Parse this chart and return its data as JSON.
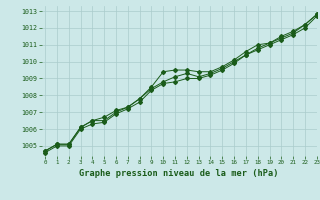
{
  "title": "Graphe pression niveau de la mer (hPa)",
  "bg_color": "#cce8e8",
  "grid_color": "#aacccc",
  "line_color": "#1a5c1a",
  "xlim": [
    -0.3,
    23
  ],
  "ylim": [
    1004.4,
    1013.3
  ],
  "yticks": [
    1005,
    1006,
    1007,
    1008,
    1009,
    1010,
    1011,
    1012,
    1013
  ],
  "xticks": [
    0,
    1,
    2,
    3,
    4,
    5,
    6,
    7,
    8,
    9,
    10,
    11,
    12,
    13,
    14,
    15,
    16,
    17,
    18,
    19,
    20,
    21,
    22,
    23
  ],
  "series1": [
    1004.7,
    1005.1,
    1005.1,
    1006.1,
    1006.5,
    1006.5,
    1007.0,
    1007.3,
    1007.8,
    1008.5,
    1009.4,
    1009.5,
    1009.5,
    1009.4,
    1009.4,
    1009.7,
    1010.1,
    1010.6,
    1011.0,
    1011.1,
    1011.5,
    1011.8,
    1012.2,
    1012.8
  ],
  "series2": [
    1004.7,
    1005.1,
    1005.1,
    1006.1,
    1006.5,
    1006.7,
    1007.1,
    1007.3,
    1007.8,
    1008.4,
    1008.8,
    1009.1,
    1009.3,
    1009.1,
    1009.3,
    1009.6,
    1010.0,
    1010.4,
    1010.8,
    1011.1,
    1011.4,
    1011.7,
    1012.2,
    1012.8
  ],
  "series3": [
    1004.6,
    1005.0,
    1005.0,
    1006.0,
    1006.3,
    1006.4,
    1006.9,
    1007.2,
    1007.6,
    1008.3,
    1008.7,
    1008.8,
    1009.0,
    1009.0,
    1009.2,
    1009.5,
    1009.9,
    1010.4,
    1010.7,
    1011.0,
    1011.3,
    1011.6,
    1012.0,
    1012.7
  ]
}
